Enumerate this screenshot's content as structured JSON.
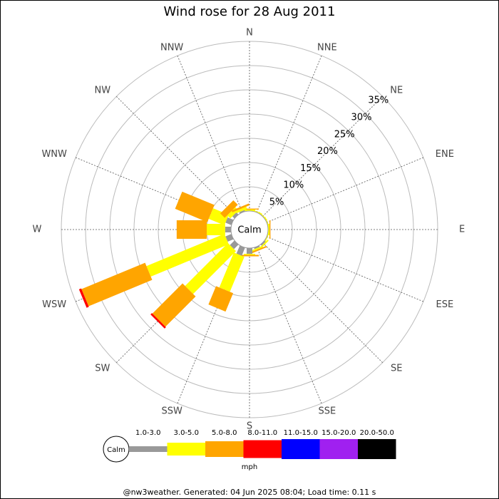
{
  "chart_data": {
    "type": "wind_rose",
    "title": "Wind rose for 28 Aug 2011",
    "categories": [
      "N",
      "NNE",
      "NE",
      "ENE",
      "E",
      "ESE",
      "SE",
      "SSE",
      "S",
      "SSW",
      "SW",
      "WSW",
      "W",
      "WNW",
      "NW",
      "NNW"
    ],
    "series": [
      {
        "name": "1.0-3.0",
        "color": "#999999",
        "values": [
          0,
          0,
          0,
          0,
          0,
          0,
          0.3,
          0.3,
          1.2,
          1.8,
          1.3,
          1.3,
          1.2,
          1.3,
          0.6,
          0.3
        ]
      },
      {
        "name": "3.0-5.0",
        "color": "#ffff00",
        "values": [
          0.3,
          0.2,
          0.2,
          0.2,
          0.3,
          0.2,
          0.3,
          0.3,
          0.2,
          7.8,
          12.5,
          17.4,
          3.8,
          3.5,
          0.9,
          0.5
        ]
      },
      {
        "name": "5.0-8.0",
        "color": "#ffa500",
        "values": [
          0.2,
          0,
          0,
          0,
          0.2,
          0,
          0,
          0.3,
          0.3,
          4.1,
          8.8,
          14.2,
          6.2,
          7.2,
          1.3,
          0.4
        ]
      },
      {
        "name": "8.0-11.0",
        "color": "#ff0000",
        "values": [
          0,
          0,
          0,
          0,
          0,
          0,
          0,
          0,
          0,
          0,
          0.4,
          0.5,
          0,
          0,
          0,
          0
        ]
      },
      {
        "name": "11.0-15.0",
        "color": "#0000ff",
        "values": [
          0,
          0,
          0,
          0,
          0,
          0,
          0,
          0,
          0,
          0,
          0,
          0,
          0,
          0,
          0,
          0
        ]
      },
      {
        "name": "15.0-20.0",
        "color": "#a020f0",
        "values": [
          0,
          0,
          0,
          0,
          0,
          0,
          0,
          0,
          0,
          0,
          0,
          0,
          0,
          0,
          0,
          0
        ]
      },
      {
        "name": "20.0-50.0",
        "color": "#000000",
        "values": [
          0,
          0,
          0,
          0,
          0,
          0,
          0,
          0,
          0,
          0,
          0,
          0,
          0,
          0,
          0,
          0
        ]
      }
    ],
    "rlim": [
      0,
      35
    ],
    "rticks": [
      {
        "value": 5,
        "label": "5%"
      },
      {
        "value": 10,
        "label": "10%"
      },
      {
        "value": 15,
        "label": "15%"
      },
      {
        "value": 20,
        "label": "20%"
      },
      {
        "value": 25,
        "label": "25%"
      },
      {
        "value": 30,
        "label": "30%"
      },
      {
        "value": 35,
        "label": "35%"
      }
    ],
    "calm_label": "Calm",
    "unit_label": "mph",
    "footer": "@nw3weather. Generated: 04 Jun 2025 08:04; Load time: 0.11 s"
  }
}
